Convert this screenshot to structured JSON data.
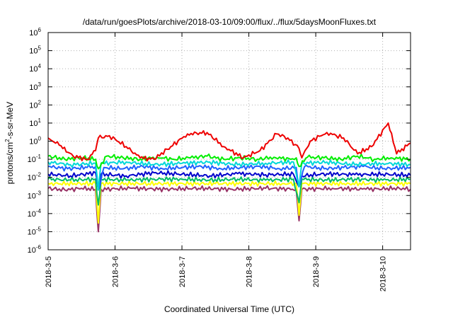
{
  "chart_data": {
    "type": "line",
    "title": "/data/run/goesPlots/archive/2018-03-10/09:00/flux/../flux/5daysMoonFluxes.txt",
    "xlabel": "Coordinated Universal Time (UTC)",
    "ylabel": {
      "pre": "protons/cm",
      "sup": "2",
      "post": "-s-sr-MeV"
    },
    "y_scale": "log",
    "ylim": [
      1e-06,
      1000000.0
    ],
    "y_ticks": [
      {
        "value": 1e-06,
        "base": "10",
        "exp": "-6"
      },
      {
        "value": 1e-05,
        "base": "10",
        "exp": "-5"
      },
      {
        "value": 0.0001,
        "base": "10",
        "exp": "-4"
      },
      {
        "value": 0.001,
        "base": "10",
        "exp": "-3"
      },
      {
        "value": 0.01,
        "base": "10",
        "exp": "-2"
      },
      {
        "value": 0.1,
        "base": "10",
        "exp": "-1"
      },
      {
        "value": 1,
        "base": "10",
        "exp": "0"
      },
      {
        "value": 10,
        "base": "10",
        "exp": "1"
      },
      {
        "value": 100,
        "base": "10",
        "exp": "2"
      },
      {
        "value": 1000,
        "base": "10",
        "exp": "3"
      },
      {
        "value": 10000,
        "base": "10",
        "exp": "4"
      },
      {
        "value": 100000,
        "base": "10",
        "exp": "5"
      },
      {
        "value": 1000000,
        "base": "10",
        "exp": "6"
      }
    ],
    "xlim": [
      "2018-03-05 00:00",
      "2018-03-10 10:00"
    ],
    "x_ticks": [
      {
        "date": "2018-03-05",
        "label": "2018-3-5"
      },
      {
        "date": "2018-03-06",
        "label": "2018-3-6"
      },
      {
        "date": "2018-03-07",
        "label": "2018-3-7"
      },
      {
        "date": "2018-03-08",
        "label": "2018-3-8"
      },
      {
        "date": "2018-03-09",
        "label": "2018-3-9"
      },
      {
        "date": "2018-03-10",
        "label": "2018-3-10"
      }
    ],
    "grid": true,
    "series": [
      {
        "color": "#ee0000",
        "x": [
          "2018-03-05 00:00",
          "2018-03-05 04:00",
          "2018-03-05 09:00",
          "2018-03-05 14:00",
          "2018-03-05 17:00",
          "2018-03-05 18:00",
          "2018-03-05 22:00",
          "2018-03-06 04:00",
          "2018-03-06 09:00",
          "2018-03-06 14:00",
          "2018-03-06 20:00",
          "2018-03-07 02:00",
          "2018-03-07 09:00",
          "2018-03-07 15:00",
          "2018-03-07 22:00",
          "2018-03-08 04:00",
          "2018-03-08 10:00",
          "2018-03-08 14:00",
          "2018-03-08 18:00",
          "2018-03-08 19:00",
          "2018-03-08 22:00",
          "2018-03-09 04:00",
          "2018-03-09 10:00",
          "2018-03-09 15:00",
          "2018-03-09 20:00",
          "2018-03-10 02:00",
          "2018-03-10 05:00",
          "2018-03-10 10:00"
        ],
        "y": [
          1.5,
          0.6,
          0.15,
          0.1,
          0.3,
          1.5,
          2,
          0.5,
          0.12,
          0.1,
          0.5,
          2.5,
          3,
          0.5,
          0.12,
          0.3,
          2.5,
          1.5,
          0.4,
          0.12,
          1,
          3,
          1.5,
          0.2,
          0.5,
          10,
          0.2,
          0.8
        ]
      },
      {
        "color": "#00ee00",
        "x": [
          "2018-03-05 00:00",
          "2018-03-05 06:00",
          "2018-03-05 12:00",
          "2018-03-05 17:00",
          "2018-03-05 18:00",
          "2018-03-05 21:00",
          "2018-03-06 03:00",
          "2018-03-06 09:00",
          "2018-03-06 15:00",
          "2018-03-06 21:00",
          "2018-03-07 03:00",
          "2018-03-07 09:00",
          "2018-03-07 15:00",
          "2018-03-07 21:00",
          "2018-03-08 03:00",
          "2018-03-08 09:00",
          "2018-03-08 15:00",
          "2018-03-08 17:00",
          "2018-03-08 18:00",
          "2018-03-08 21:00",
          "2018-03-09 03:00",
          "2018-03-09 09:00",
          "2018-03-09 15:00",
          "2018-03-09 21:00",
          "2018-03-10 03:00",
          "2018-03-10 10:00"
        ],
        "y": [
          0.15,
          0.1,
          0.12,
          0.1,
          0.03,
          0.15,
          0.12,
          0.1,
          0.13,
          0.1,
          0.12,
          0.15,
          0.1,
          0.12,
          0.1,
          0.13,
          0.1,
          0.12,
          0.04,
          0.13,
          0.12,
          0.1,
          0.15,
          0.1,
          0.12,
          0.1
        ]
      },
      {
        "color": "#00d8d8",
        "x": [
          "2018-03-05 00:00",
          "2018-03-05 08:00",
          "2018-03-05 17:00",
          "2018-03-05 18:00",
          "2018-03-05 19:00",
          "2018-03-06 04:00",
          "2018-03-06 14:00",
          "2018-03-07 00:00",
          "2018-03-07 10:00",
          "2018-03-07 20:00",
          "2018-03-08 06:00",
          "2018-03-08 16:00",
          "2018-03-08 18:00",
          "2018-03-08 19:00",
          "2018-03-09 04:00",
          "2018-03-09 14:00",
          "2018-03-10 00:00",
          "2018-03-10 10:00"
        ],
        "y": [
          0.07,
          0.05,
          0.06,
          0.002,
          0.06,
          0.07,
          0.05,
          0.06,
          0.07,
          0.05,
          0.06,
          0.07,
          0.003,
          0.06,
          0.07,
          0.05,
          0.06,
          0.05
        ]
      },
      {
        "color": "#2060ff",
        "x": [
          "2018-03-05 00:00",
          "2018-03-05 07:00",
          "2018-03-05 14:00",
          "2018-03-05 17:00",
          "2018-03-05 18:00",
          "2018-03-05 20:00",
          "2018-03-06 03:00",
          "2018-03-06 10:00",
          "2018-03-06 17:00",
          "2018-03-07 00:00",
          "2018-03-07 07:00",
          "2018-03-07 14:00",
          "2018-03-07 21:00",
          "2018-03-08 04:00",
          "2018-03-08 11:00",
          "2018-03-08 17:00",
          "2018-03-08 18:00",
          "2018-03-08 20:00",
          "2018-03-09 03:00",
          "2018-03-09 10:00",
          "2018-03-09 17:00",
          "2018-03-10 00:00",
          "2018-03-10 10:00"
        ],
        "y": [
          0.04,
          0.03,
          0.035,
          0.04,
          0.002,
          0.035,
          0.03,
          0.04,
          0.03,
          0.035,
          0.04,
          0.03,
          0.035,
          0.04,
          0.03,
          0.035,
          0.003,
          0.04,
          0.03,
          0.035,
          0.04,
          0.03,
          0.035
        ]
      },
      {
        "color": "#0000cc",
        "x": [
          "2018-03-05 00:00",
          "2018-03-05 08:00",
          "2018-03-05 17:00",
          "2018-03-05 18:00",
          "2018-03-05 19:00",
          "2018-03-06 04:00",
          "2018-03-06 14:00",
          "2018-03-07 00:00",
          "2018-03-07 10:00",
          "2018-03-07 20:00",
          "2018-03-08 06:00",
          "2018-03-08 16:00",
          "2018-03-08 18:00",
          "2018-03-08 19:00",
          "2018-03-09 04:00",
          "2018-03-09 14:00",
          "2018-03-10 00:00",
          "2018-03-10 10:00"
        ],
        "y": [
          0.015,
          0.012,
          0.018,
          0.002,
          0.015,
          0.012,
          0.018,
          0.015,
          0.012,
          0.016,
          0.014,
          0.015,
          0.003,
          0.012,
          0.016,
          0.014,
          0.015,
          0.013
        ]
      },
      {
        "color": "#00bb66",
        "x": [
          "2018-03-05 00:00",
          "2018-03-05 08:00",
          "2018-03-05 17:00",
          "2018-03-05 18:00",
          "2018-03-05 19:00",
          "2018-03-06 04:00",
          "2018-03-06 14:00",
          "2018-03-07 00:00",
          "2018-03-07 10:00",
          "2018-03-07 20:00",
          "2018-03-08 06:00",
          "2018-03-08 16:00",
          "2018-03-08 18:00",
          "2018-03-08 19:00",
          "2018-03-09 04:00",
          "2018-03-09 14:00",
          "2018-03-10 00:00",
          "2018-03-10 10:00"
        ],
        "y": [
          0.008,
          0.007,
          0.008,
          0.0003,
          0.008,
          0.007,
          0.008,
          0.008,
          0.007,
          0.008,
          0.007,
          0.008,
          0.0004,
          0.008,
          0.007,
          0.008,
          0.007,
          0.008
        ]
      },
      {
        "color": "#ffff00",
        "x": [
          "2018-03-05 00:00",
          "2018-03-05 17:00",
          "2018-03-05 18:00",
          "2018-03-05 19:00",
          "2018-03-06 12:00",
          "2018-03-07 12:00",
          "2018-03-08 12:00",
          "2018-03-08 17:00",
          "2018-03-08 18:00",
          "2018-03-08 19:00",
          "2018-03-09 12:00",
          "2018-03-10 10:00"
        ],
        "y": [
          0.0045,
          0.0045,
          3e-05,
          0.0045,
          0.0045,
          0.0045,
          0.0045,
          0.0045,
          8e-05,
          0.0045,
          0.0045,
          0.0045
        ]
      },
      {
        "color": "#993366",
        "x": [
          "2018-03-05 00:00",
          "2018-03-05 06:00",
          "2018-03-05 12:00",
          "2018-03-05 17:00",
          "2018-03-05 18:00",
          "2018-03-05 19:00",
          "2018-03-06 06:00",
          "2018-03-06 18:00",
          "2018-03-07 06:00",
          "2018-03-07 18:00",
          "2018-03-08 06:00",
          "2018-03-08 17:00",
          "2018-03-08 18:00",
          "2018-03-08 19:00",
          "2018-03-09 06:00",
          "2018-03-09 18:00",
          "2018-03-10 06:00",
          "2018-03-10 10:00"
        ],
        "y": [
          0.0025,
          0.002,
          0.0025,
          0.0022,
          1e-05,
          0.0022,
          0.0025,
          0.0022,
          0.0025,
          0.0022,
          0.0025,
          0.0022,
          4e-05,
          0.0022,
          0.0025,
          0.0022,
          0.0025,
          0.0022
        ]
      }
    ]
  }
}
